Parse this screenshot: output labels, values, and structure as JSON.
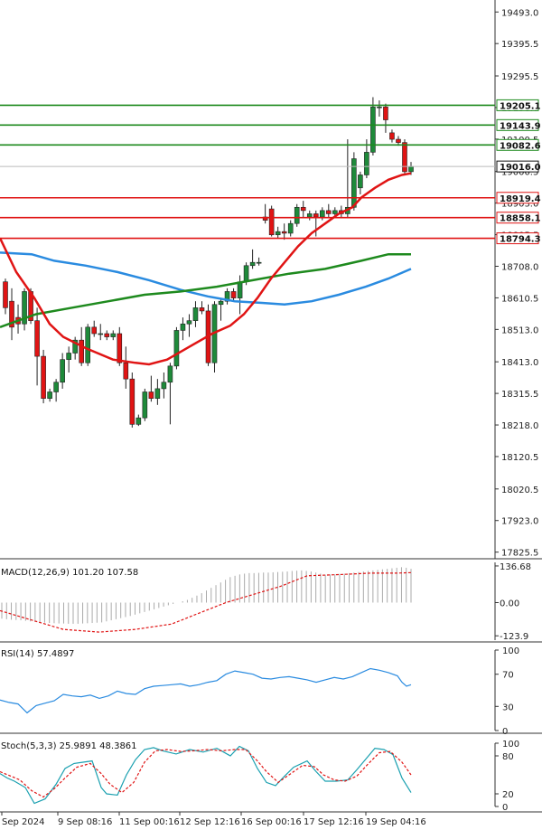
{
  "chart_data": {
    "type": "candlestick",
    "main": {
      "y_ticks": [
        19493.0,
        19395.5,
        19295.5,
        19198.0,
        19100.5,
        19000.5,
        18903.0,
        18805.5,
        18708.0,
        18610.5,
        18513.0,
        18413.0,
        18315.5,
        18218.0,
        18120.5,
        18020.5,
        17923.0,
        17825.5
      ],
      "y_range": [
        17805,
        19530
      ],
      "current_price": "19016.0",
      "resistance_levels": [
        "19205.1",
        "19143.9",
        "19082.6"
      ],
      "support_levels": [
        "18919.4",
        "18858.1",
        "18794.3"
      ],
      "colors": {
        "bull": "#1e8a3a",
        "bear": "#e01414",
        "resistance": "#1e8a1e",
        "support": "#e01414",
        "ma_fast": "#e01414",
        "ma_slow": "#2a8be0",
        "ma_long": "#1e8a1e"
      },
      "candles": [
        [
          18660,
          18670,
          18560,
          18580
        ],
        [
          18600,
          18640,
          18480,
          18520
        ],
        [
          18550,
          18590,
          18500,
          18530
        ],
        [
          18530,
          18640,
          18510,
          18630
        ],
        [
          18630,
          18640,
          18530,
          18540
        ],
        [
          18540,
          18580,
          18340,
          18430
        ],
        [
          18430,
          18450,
          18285,
          18300
        ],
        [
          18300,
          18330,
          18290,
          18320
        ],
        [
          18320,
          18360,
          18290,
          18350
        ],
        [
          18350,
          18440,
          18330,
          18420
        ],
        [
          18420,
          18460,
          18380,
          18440
        ],
        [
          18440,
          18490,
          18420,
          18480
        ],
        [
          18480,
          18520,
          18400,
          18410
        ],
        [
          18410,
          18530,
          18400,
          18520
        ],
        [
          18520,
          18540,
          18490,
          18500
        ],
        [
          18500,
          18530,
          18480,
          18500
        ],
        [
          18500,
          18510,
          18480,
          18490
        ],
        [
          18490,
          18510,
          18480,
          18500
        ],
        [
          18500,
          18520,
          18400,
          18410
        ],
        [
          18410,
          18460,
          18330,
          18360
        ],
        [
          18360,
          18380,
          18210,
          18220
        ],
        [
          18220,
          18250,
          18215,
          18240
        ],
        [
          18240,
          18330,
          18230,
          18320
        ],
        [
          18320,
          18370,
          18290,
          18300
        ],
        [
          18300,
          18360,
          18280,
          18330
        ],
        [
          18330,
          18380,
          18300,
          18350
        ],
        [
          18350,
          18410,
          18220,
          18400
        ],
        [
          18400,
          18520,
          18390,
          18510
        ],
        [
          18510,
          18550,
          18480,
          18530
        ],
        [
          18530,
          18560,
          18490,
          18540
        ],
        [
          18540,
          18600,
          18520,
          18580
        ],
        [
          18580,
          18600,
          18560,
          18570
        ],
        [
          18570,
          18590,
          18400,
          18410
        ],
        [
          18410,
          18600,
          18380,
          18590
        ],
        [
          18590,
          18610,
          18540,
          18600
        ],
        [
          18600,
          18640,
          18590,
          18630
        ],
        [
          18630,
          18640,
          18600,
          18610
        ],
        [
          18610,
          18680,
          18560,
          18660
        ],
        [
          18660,
          18720,
          18650,
          18710
        ],
        [
          18710,
          18760,
          18700,
          18720
        ],
        [
          18720,
          18735,
          18710,
          18720
        ],
        [
          18860,
          18900,
          18840,
          18850
        ],
        [
          18885,
          18895,
          18800,
          18805
        ],
        [
          18805,
          18830,
          18795,
          18815
        ],
        [
          18815,
          18840,
          18790,
          18810
        ],
        [
          18810,
          18850,
          18800,
          18840
        ],
        [
          18840,
          18900,
          18830,
          18890
        ],
        [
          18890,
          18910,
          18860,
          18880
        ],
        [
          18860,
          18880,
          18850,
          18870
        ],
        [
          18870,
          18880,
          18800,
          18860
        ],
        [
          18860,
          18890,
          18850,
          18880
        ],
        [
          18880,
          18900,
          18860,
          18870
        ],
        [
          18870,
          18890,
          18860,
          18880
        ],
        [
          18880,
          18895,
          18860,
          18870
        ],
        [
          18870,
          19100,
          18860,
          18890
        ],
        [
          18890,
          19060,
          18880,
          19040
        ],
        [
          18950,
          19000,
          18930,
          18990
        ],
        [
          18990,
          19100,
          18980,
          19060
        ],
        [
          19060,
          19230,
          19050,
          19200
        ],
        [
          19200,
          19220,
          19170,
          19200
        ],
        [
          19200,
          19210,
          19120,
          19160
        ],
        [
          19120,
          19130,
          19090,
          19100
        ],
        [
          19100,
          19110,
          19080,
          19090
        ],
        [
          19090,
          19100,
          18990,
          19000
        ],
        [
          19000,
          19030,
          18990,
          19016
        ]
      ],
      "ma_fast": [
        [
          0,
          18795
        ],
        [
          18,
          18690
        ],
        [
          38,
          18610
        ],
        [
          55,
          18530
        ],
        [
          70,
          18490
        ],
        [
          95,
          18455
        ],
        [
          125,
          18420
        ],
        [
          150,
          18410
        ],
        [
          165,
          18405
        ],
        [
          185,
          18420
        ],
        [
          210,
          18460
        ],
        [
          235,
          18500
        ],
        [
          255,
          18525
        ],
        [
          270,
          18560
        ],
        [
          285,
          18610
        ],
        [
          300,
          18670
        ],
        [
          315,
          18720
        ],
        [
          330,
          18770
        ],
        [
          345,
          18810
        ],
        [
          360,
          18840
        ],
        [
          375,
          18870
        ],
        [
          390,
          18890
        ],
        [
          400,
          18920
        ],
        [
          415,
          18950
        ],
        [
          430,
          18975
        ],
        [
          445,
          18990
        ],
        [
          455,
          18995
        ]
      ],
      "ma_slow": [
        [
          0,
          18750
        ],
        [
          35,
          18745
        ],
        [
          60,
          18725
        ],
        [
          95,
          18710
        ],
        [
          130,
          18690
        ],
        [
          165,
          18665
        ],
        [
          200,
          18635
        ],
        [
          230,
          18615
        ],
        [
          260,
          18600
        ],
        [
          290,
          18595
        ],
        [
          315,
          18590
        ],
        [
          345,
          18600
        ],
        [
          375,
          18620
        ],
        [
          405,
          18645
        ],
        [
          430,
          18670
        ],
        [
          455,
          18700
        ]
      ],
      "ma_long": [
        [
          0,
          18520
        ],
        [
          40,
          18560
        ],
        [
          80,
          18580
        ],
        [
          120,
          18600
        ],
        [
          160,
          18620
        ],
        [
          200,
          18630
        ],
        [
          240,
          18645
        ],
        [
          280,
          18665
        ],
        [
          320,
          18685
        ],
        [
          360,
          18700
        ],
        [
          400,
          18725
        ],
        [
          430,
          18745
        ],
        [
          455,
          18745
        ]
      ]
    },
    "macd": {
      "label": "MACD(12,26,9) 101.20 107.58",
      "y_ticks": [
        "136.68",
        "0.00",
        "-123.9"
      ],
      "y_range": [
        -140,
        150
      ],
      "hist": [
        -60,
        -62,
        -64,
        -65,
        -66,
        -68,
        -70,
        -72,
        -73,
        -75,
        -76,
        -77,
        -78,
        -78,
        -79,
        -79,
        -79,
        -78,
        -77,
        -76,
        -75,
        -74,
        -70,
        -66,
        -62,
        -58,
        -54,
        -50,
        -45,
        -40,
        -35,
        -30,
        -25,
        -20,
        -15,
        -10,
        -5,
        0,
        5,
        10,
        18,
        26,
        35,
        45,
        55,
        65,
        75,
        85,
        95,
        100,
        105,
        108,
        110,
        110,
        111,
        112,
        112,
        113,
        114,
        115,
        116,
        118,
        119,
        120,
        118,
        116,
        112,
        108,
        104,
        105,
        106,
        107,
        108,
        110,
        112,
        114,
        116,
        118,
        120,
        122,
        124,
        126,
        128,
        130,
        132,
        130,
        126
      ],
      "signal": [
        [
          0,
          -30
        ],
        [
          30,
          -60
        ],
        [
          70,
          -100
        ],
        [
          110,
          -110
        ],
        [
          150,
          -100
        ],
        [
          190,
          -80
        ],
        [
          220,
          -40
        ],
        [
          250,
          0
        ],
        [
          280,
          30
        ],
        [
          310,
          60
        ],
        [
          340,
          100
        ],
        [
          380,
          105
        ],
        [
          410,
          110
        ],
        [
          440,
          110
        ],
        [
          455,
          112
        ]
      ]
    },
    "rsi": {
      "label": "RSI(14) 57.4897",
      "y_ticks": [
        "100",
        "70",
        "30",
        "0"
      ],
      "y_range": [
        0,
        100
      ],
      "line": [
        [
          0,
          38
        ],
        [
          10,
          35
        ],
        [
          20,
          33
        ],
        [
          30,
          22
        ],
        [
          40,
          31
        ],
        [
          50,
          34
        ],
        [
          60,
          37
        ],
        [
          70,
          45
        ],
        [
          80,
          43
        ],
        [
          90,
          42
        ],
        [
          100,
          44
        ],
        [
          110,
          40
        ],
        [
          120,
          43
        ],
        [
          130,
          49
        ],
        [
          140,
          46
        ],
        [
          150,
          45
        ],
        [
          160,
          52
        ],
        [
          170,
          55
        ],
        [
          180,
          56
        ],
        [
          190,
          57
        ],
        [
          200,
          58
        ],
        [
          210,
          55
        ],
        [
          220,
          57
        ],
        [
          230,
          60
        ],
        [
          240,
          62
        ],
        [
          250,
          70
        ],
        [
          260,
          74
        ],
        [
          270,
          72
        ],
        [
          280,
          70
        ],
        [
          290,
          65
        ],
        [
          300,
          64
        ],
        [
          310,
          66
        ],
        [
          320,
          67
        ],
        [
          330,
          65
        ],
        [
          340,
          63
        ],
        [
          350,
          60
        ],
        [
          360,
          63
        ],
        [
          370,
          66
        ],
        [
          380,
          64
        ],
        [
          390,
          67
        ],
        [
          400,
          72
        ],
        [
          410,
          77
        ],
        [
          420,
          75
        ],
        [
          430,
          72
        ],
        [
          440,
          68
        ],
        [
          445,
          60
        ],
        [
          450,
          55
        ],
        [
          455,
          57
        ]
      ]
    },
    "stoch": {
      "label": "Stoch(5,3,3) 25.9891 48.3861",
      "y_ticks": [
        "100",
        "80",
        "20",
        "0"
      ],
      "y_range": [
        0,
        100
      ],
      "k": [
        [
          0,
          52
        ],
        [
          8,
          45
        ],
        [
          16,
          40
        ],
        [
          28,
          30
        ],
        [
          38,
          5
        ],
        [
          50,
          12
        ],
        [
          62,
          35
        ],
        [
          72,
          60
        ],
        [
          82,
          68
        ],
        [
          92,
          70
        ],
        [
          102,
          72
        ],
        [
          112,
          30
        ],
        [
          118,
          20
        ],
        [
          130,
          18
        ],
        [
          140,
          50
        ],
        [
          150,
          74
        ],
        [
          160,
          90
        ],
        [
          170,
          93
        ],
        [
          180,
          88
        ],
        [
          195,
          83
        ],
        [
          210,
          90
        ],
        [
          225,
          86
        ],
        [
          240,
          92
        ],
        [
          255,
          80
        ],
        [
          265,
          95
        ],
        [
          275,
          88
        ],
        [
          285,
          60
        ],
        [
          295,
          38
        ],
        [
          305,
          33
        ],
        [
          315,
          48
        ],
        [
          325,
          62
        ],
        [
          340,
          72
        ],
        [
          350,
          55
        ],
        [
          360,
          40
        ],
        [
          372,
          40
        ],
        [
          385,
          42
        ],
        [
          395,
          58
        ],
        [
          405,
          75
        ],
        [
          415,
          92
        ],
        [
          425,
          90
        ],
        [
          435,
          82
        ],
        [
          445,
          45
        ],
        [
          455,
          22
        ]
      ],
      "d": [
        [
          0,
          55
        ],
        [
          12,
          48
        ],
        [
          22,
          42
        ],
        [
          35,
          25
        ],
        [
          48,
          15
        ],
        [
          60,
          28
        ],
        [
          72,
          45
        ],
        [
          85,
          62
        ],
        [
          100,
          68
        ],
        [
          112,
          52
        ],
        [
          122,
          35
        ],
        [
          135,
          22
        ],
        [
          148,
          38
        ],
        [
          160,
          70
        ],
        [
          172,
          88
        ],
        [
          185,
          90
        ],
        [
          200,
          87
        ],
        [
          215,
          88
        ],
        [
          230,
          90
        ],
        [
          245,
          88
        ],
        [
          260,
          90
        ],
        [
          272,
          90
        ],
        [
          285,
          72
        ],
        [
          295,
          55
        ],
        [
          308,
          38
        ],
        [
          320,
          50
        ],
        [
          335,
          65
        ],
        [
          348,
          63
        ],
        [
          358,
          50
        ],
        [
          370,
          42
        ],
        [
          382,
          40
        ],
        [
          395,
          48
        ],
        [
          408,
          68
        ],
        [
          420,
          85
        ],
        [
          432,
          87
        ],
        [
          445,
          70
        ],
        [
          455,
          50
        ]
      ]
    },
    "x_ticks": [
      "Sep 2024",
      "9 Sep 08:16",
      "11 Sep 00:16",
      "12 Sep 12:16",
      "16 Sep 00:16",
      "17 Sep 12:16",
      "19 Sep 04:16"
    ]
  }
}
